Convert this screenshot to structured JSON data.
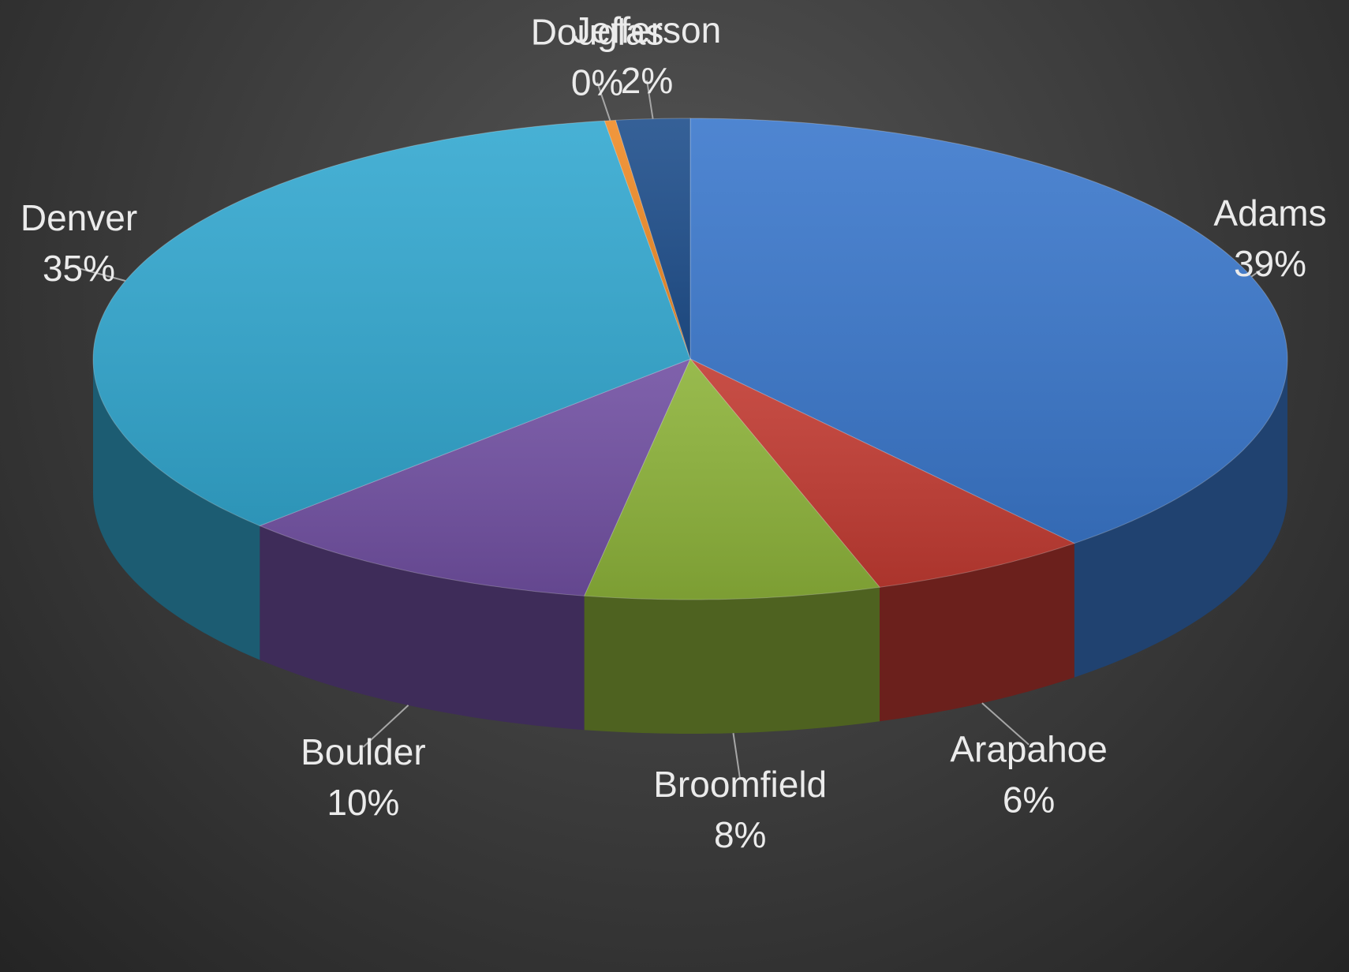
{
  "chart_data": {
    "type": "pie",
    "style": "3d",
    "slices": [
      {
        "label": "Adams",
        "percent_label": "39%",
        "value": 39,
        "color": "#3b78cc"
      },
      {
        "label": "Arapahoe",
        "percent_label": "6%",
        "value": 6,
        "color": "#c23b32"
      },
      {
        "label": "Broomfield",
        "percent_label": "8%",
        "value": 8,
        "color": "#8db33a"
      },
      {
        "label": "Boulder",
        "percent_label": "10%",
        "value": 10,
        "color": "#7150a2"
      },
      {
        "label": "Denver",
        "percent_label": "35%",
        "value": 35,
        "color": "#33a8d0"
      },
      {
        "label": "Douglas",
        "percent_label": "0%",
        "value": 0.3,
        "color": "#f08c28"
      },
      {
        "label": "Jefferson",
        "percent_label": "2%",
        "value": 2,
        "color": "#1f4f8c"
      }
    ],
    "legend": "none",
    "data_labels": "outside-with-leader-lines"
  }
}
